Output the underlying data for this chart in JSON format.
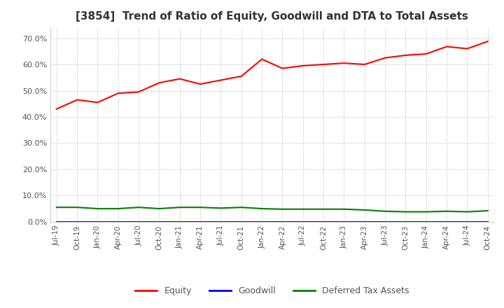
{
  "title": "[3854]  Trend of Ratio of Equity, Goodwill and DTA to Total Assets",
  "title_fontsize": 11,
  "ylim": [
    0.0,
    0.74
  ],
  "yticks": [
    0.0,
    0.1,
    0.2,
    0.3,
    0.4,
    0.5,
    0.6,
    0.7
  ],
  "x_labels": [
    "Jul-19",
    "Oct-19",
    "Jan-20",
    "Apr-20",
    "Jul-20",
    "Oct-20",
    "Jan-21",
    "Apr-21",
    "Jul-21",
    "Oct-21",
    "Jan-22",
    "Apr-22",
    "Jul-22",
    "Oct-22",
    "Jan-23",
    "Apr-23",
    "Jul-23",
    "Oct-23",
    "Jan-24",
    "Apr-24",
    "Jul-24",
    "Oct-24"
  ],
  "equity": [
    0.43,
    0.465,
    0.455,
    0.49,
    0.495,
    0.53,
    0.545,
    0.525,
    0.54,
    0.555,
    0.62,
    0.585,
    0.595,
    0.6,
    0.605,
    0.6,
    0.625,
    0.635,
    0.64,
    0.668,
    0.66,
    0.688
  ],
  "goodwill": [
    0.0,
    0.0,
    0.0,
    0.0,
    0.0,
    0.0,
    0.0,
    0.0,
    0.0,
    0.0,
    0.0,
    0.0,
    0.0,
    0.0,
    0.0,
    0.0,
    0.0,
    0.0,
    0.0,
    0.0,
    0.0,
    0.0
  ],
  "dta": [
    0.055,
    0.055,
    0.05,
    0.05,
    0.055,
    0.05,
    0.055,
    0.055,
    0.052,
    0.055,
    0.05,
    0.048,
    0.048,
    0.048,
    0.048,
    0.045,
    0.04,
    0.038,
    0.038,
    0.04,
    0.038,
    0.042
  ],
  "equity_color": "#ff0000",
  "goodwill_color": "#0000ff",
  "dta_color": "#008000",
  "background_color": "#ffffff",
  "plot_bg_color": "#ffffff",
  "grid_color": "#aaaaaa",
  "legend_labels": [
    "Equity",
    "Goodwill",
    "Deferred Tax Assets"
  ],
  "legend_colors": [
    "#ff0000",
    "#0000ff",
    "#008000"
  ]
}
